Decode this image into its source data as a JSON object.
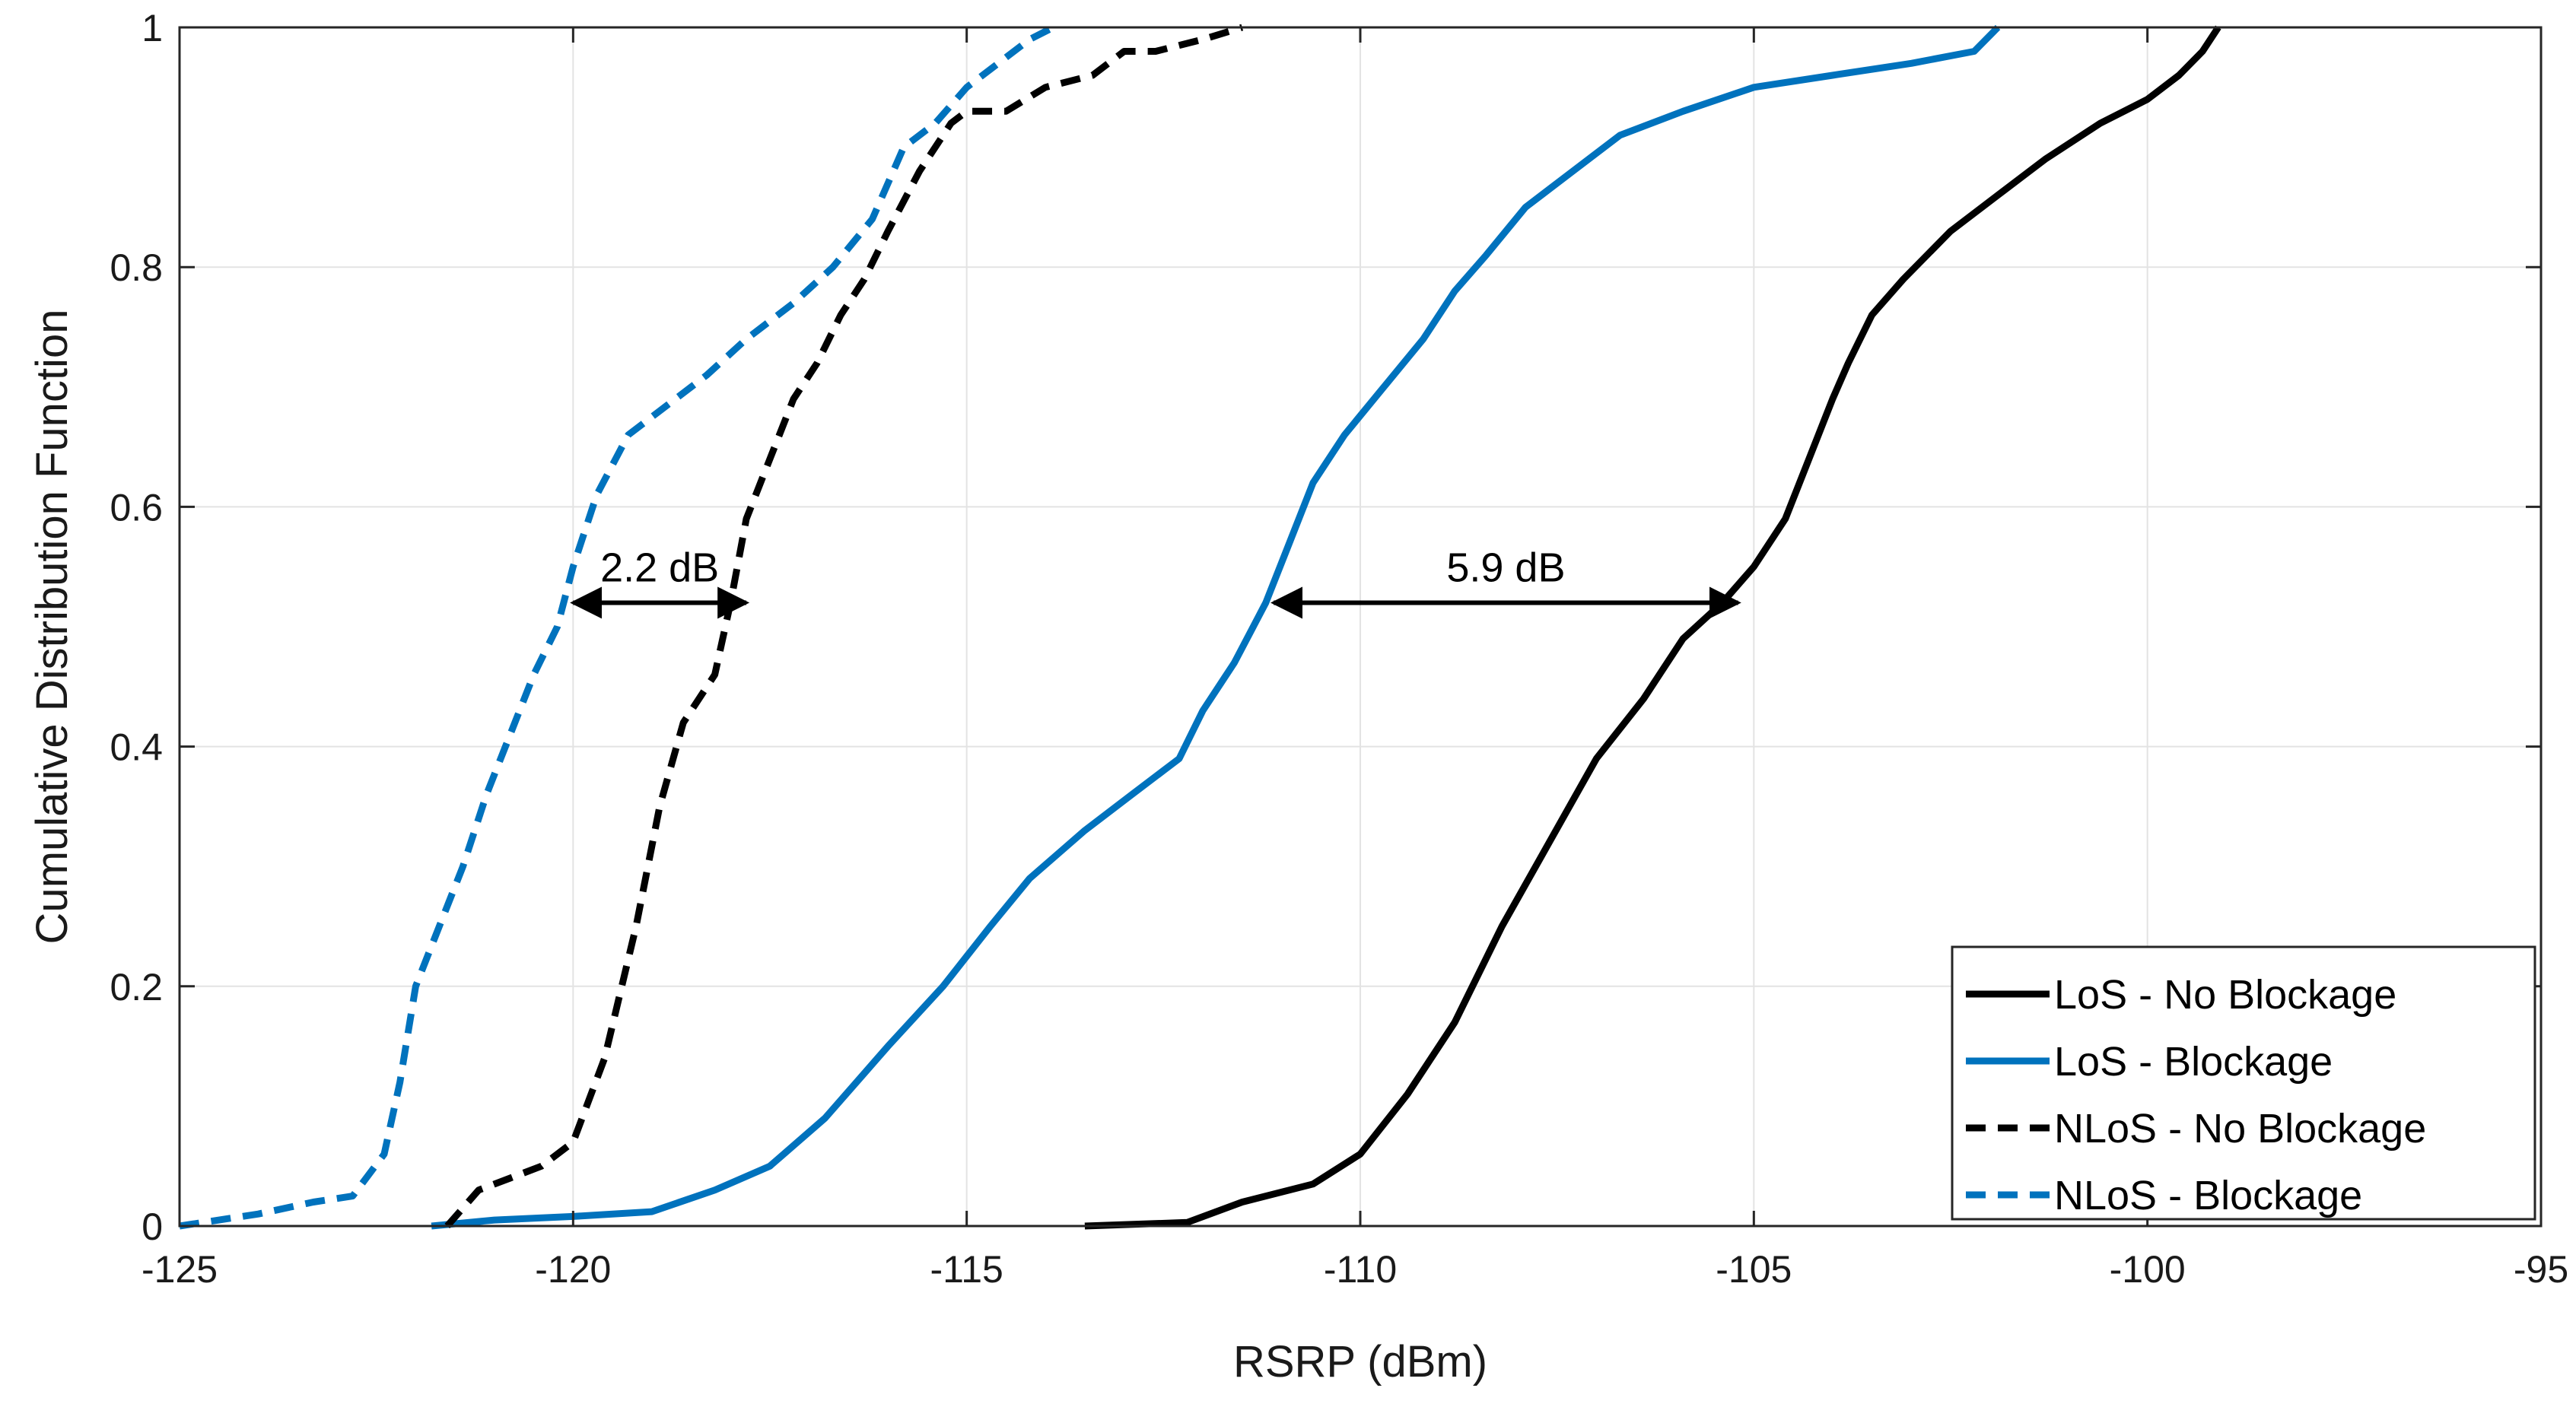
{
  "chart_data": {
    "type": "line",
    "title": "",
    "xlabel": "RSRP (dBm)",
    "ylabel": "Cumulative Distribution Function",
    "xlim": [
      -125,
      -95
    ],
    "ylim": [
      0,
      1
    ],
    "xticks": [
      -125,
      -120,
      -115,
      -110,
      -105,
      -100,
      -95
    ],
    "yticks": [
      0,
      0.2,
      0.4,
      0.6,
      0.8,
      1
    ],
    "xtick_labels": [
      "-125",
      "-120",
      "-115",
      "-110",
      "-105",
      "-100",
      "-95"
    ],
    "ytick_labels": [
      "0",
      "0.2",
      "0.4",
      "0.6",
      "0.8",
      "1"
    ],
    "grid": true,
    "legend_position": "bottom-right",
    "series": [
      {
        "name": "LoS - No Blockage",
        "color": "#000000",
        "style": "solid",
        "x": [
          -113.5,
          -112.2,
          -111.5,
          -110.6,
          -110.0,
          -109.4,
          -108.8,
          -108.2,
          -107.6,
          -107.0,
          -106.4,
          -105.9,
          -105.4,
          -105.0,
          -104.6,
          -104.3,
          -104.0,
          -103.8,
          -103.5,
          -103.1,
          -102.5,
          -101.9,
          -101.3,
          -100.6,
          -100.0,
          -99.6,
          -99.3,
          -99.1
        ],
        "y": [
          0.0,
          0.003,
          0.02,
          0.035,
          0.06,
          0.11,
          0.17,
          0.25,
          0.32,
          0.39,
          0.44,
          0.49,
          0.52,
          0.55,
          0.59,
          0.64,
          0.69,
          0.72,
          0.76,
          0.79,
          0.83,
          0.86,
          0.89,
          0.92,
          0.94,
          0.96,
          0.98,
          1.0
        ]
      },
      {
        "name": "LoS - Blockage",
        "color": "#0072BD",
        "style": "solid",
        "x": [
          -121.8,
          -121.0,
          -120.0,
          -119.0,
          -118.2,
          -117.5,
          -116.8,
          -116.0,
          -115.3,
          -114.7,
          -114.2,
          -113.5,
          -112.9,
          -112.3,
          -112.0,
          -111.6,
          -111.2,
          -110.9,
          -110.6,
          -110.2,
          -109.7,
          -109.2,
          -108.8,
          -108.4,
          -107.9,
          -107.3,
          -106.7,
          -105.9,
          -105.0,
          -104.0,
          -103.0,
          -102.2,
          -101.9
        ],
        "y": [
          0.0,
          0.005,
          0.008,
          0.012,
          0.03,
          0.05,
          0.09,
          0.15,
          0.2,
          0.25,
          0.29,
          0.33,
          0.36,
          0.39,
          0.43,
          0.47,
          0.52,
          0.57,
          0.62,
          0.66,
          0.7,
          0.74,
          0.78,
          0.81,
          0.85,
          0.88,
          0.91,
          0.93,
          0.95,
          0.96,
          0.97,
          0.98,
          1.0
        ]
      },
      {
        "name": "NLoS - No Blockage",
        "color": "#000000",
        "style": "dashed",
        "x": [
          -121.6,
          -121.2,
          -120.8,
          -120.4,
          -120.0,
          -119.6,
          -119.2,
          -118.9,
          -118.6,
          -118.2,
          -118.0,
          -117.8,
          -117.5,
          -117.2,
          -116.9,
          -116.6,
          -116.3,
          -116.0,
          -115.6,
          -115.2,
          -115.0,
          -114.5,
          -114.0,
          -113.4,
          -113.0,
          -112.6,
          -112.0,
          -111.5
        ],
        "y": [
          0.0,
          0.03,
          0.04,
          0.05,
          0.07,
          0.14,
          0.25,
          0.35,
          0.42,
          0.46,
          0.52,
          0.59,
          0.64,
          0.69,
          0.72,
          0.76,
          0.79,
          0.83,
          0.88,
          0.92,
          0.93,
          0.93,
          0.95,
          0.96,
          0.98,
          0.98,
          0.99,
          1.0
        ]
      },
      {
        "name": "NLoS - Blockage",
        "color": "#0072BD",
        "style": "dashed",
        "x": [
          -125.0,
          -124.0,
          -123.3,
          -122.8,
          -122.4,
          -122.2,
          -122.0,
          -121.7,
          -121.4,
          -121.1,
          -120.8,
          -120.5,
          -120.2,
          -120.0,
          -119.7,
          -119.3,
          -118.9,
          -118.3,
          -117.8,
          -117.2,
          -116.7,
          -116.2,
          -115.8,
          -115.4,
          -115.0,
          -114.6,
          -114.2,
          -113.9
        ],
        "y": [
          0.0,
          0.01,
          0.02,
          0.025,
          0.06,
          0.12,
          0.2,
          0.25,
          0.3,
          0.36,
          0.41,
          0.46,
          0.5,
          0.55,
          0.61,
          0.66,
          0.68,
          0.71,
          0.74,
          0.77,
          0.8,
          0.84,
          0.9,
          0.92,
          0.95,
          0.97,
          0.99,
          1.0
        ]
      }
    ],
    "annotations": [
      {
        "text": "2.2 dB",
        "x_from": -120.0,
        "x_to": -117.8,
        "y": 0.52
      },
      {
        "text": "5.9 dB",
        "x_from": -111.1,
        "x_to": -105.2,
        "y": 0.52
      }
    ]
  }
}
